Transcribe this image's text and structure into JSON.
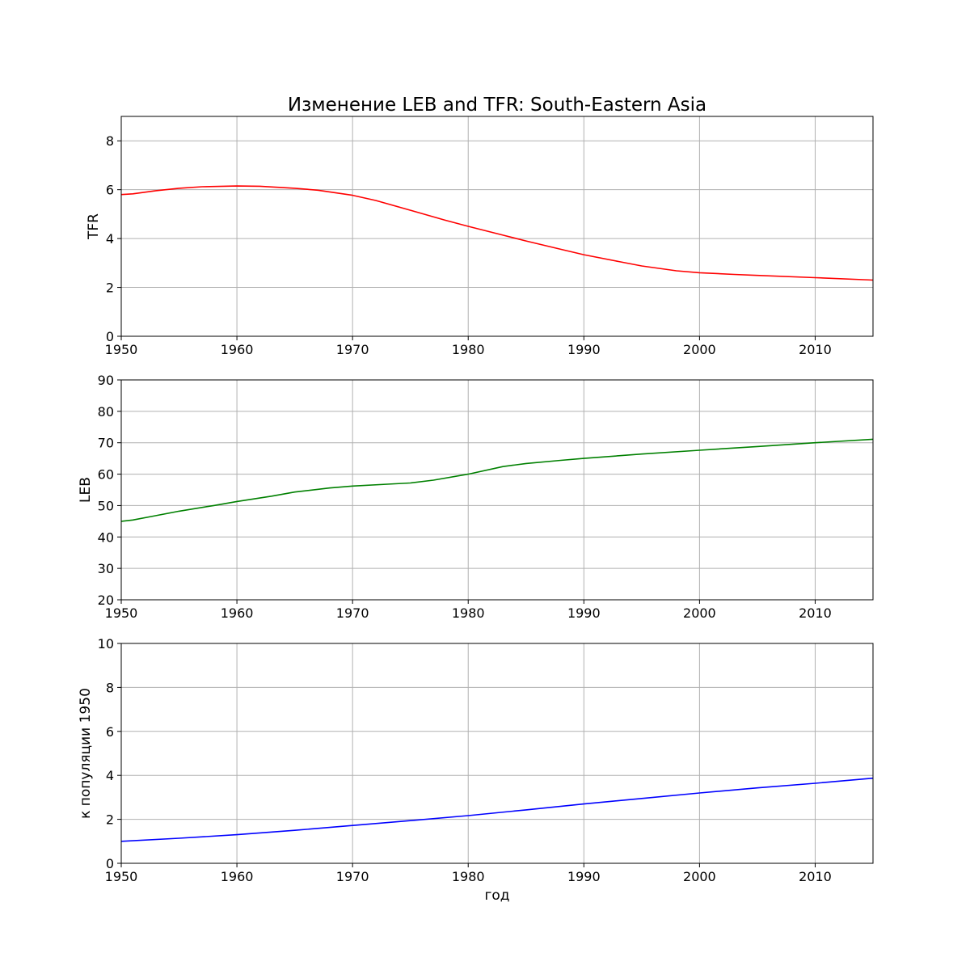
{
  "figure": {
    "title": "Изменение LEB and TFR: South-Eastern Asia"
  },
  "chart_data": [
    {
      "type": "line",
      "title": "Изменение LEB and TFR: South-Eastern Asia",
      "xlabel": "",
      "ylabel": "TFR",
      "xlim": [
        1950,
        2015
      ],
      "ylim": [
        0,
        9
      ],
      "xticks": [
        1950,
        1960,
        1970,
        1980,
        1990,
        2000,
        2010
      ],
      "yticks": [
        0,
        2,
        4,
        6,
        8
      ],
      "grid": true,
      "series": [
        {
          "color": "#ff0000",
          "x": [
            1950,
            1951,
            1953,
            1955,
            1957,
            1960,
            1962,
            1965,
            1967,
            1970,
            1972,
            1975,
            1978,
            1980,
            1983,
            1985,
            1988,
            1990,
            1993,
            1995,
            1998,
            2000,
            2003,
            2005,
            2010,
            2015
          ],
          "y": [
            5.8,
            5.83,
            5.96,
            6.06,
            6.12,
            6.15,
            6.14,
            6.06,
            5.98,
            5.77,
            5.56,
            5.16,
            4.75,
            4.5,
            4.14,
            3.9,
            3.56,
            3.34,
            3.06,
            2.88,
            2.68,
            2.6,
            2.53,
            2.49,
            2.4,
            2.3
          ]
        }
      ]
    },
    {
      "type": "line",
      "xlabel": "",
      "ylabel": "LEB",
      "xlim": [
        1950,
        2015
      ],
      "ylim": [
        20,
        90
      ],
      "xticks": [
        1950,
        1960,
        1970,
        1980,
        1990,
        2000,
        2010
      ],
      "yticks": [
        20,
        30,
        40,
        50,
        60,
        70,
        80,
        90
      ],
      "grid": true,
      "series": [
        {
          "color": "#008000",
          "x": [
            1950,
            1951,
            1953,
            1955,
            1958,
            1960,
            1963,
            1965,
            1968,
            1970,
            1973,
            1975,
            1977,
            1980,
            1983,
            1985,
            1988,
            1990,
            1995,
            2000,
            2005,
            2010,
            2015
          ],
          "y": [
            45.0,
            45.4,
            46.8,
            48.2,
            50.0,
            51.3,
            53.0,
            54.3,
            55.6,
            56.2,
            56.8,
            57.2,
            58.1,
            60.0,
            62.4,
            63.4,
            64.4,
            65.0,
            66.4,
            67.6,
            68.8,
            70.0,
            71.1
          ]
        }
      ]
    },
    {
      "type": "line",
      "xlabel": "год",
      "ylabel": "к популяции 1950",
      "xlim": [
        1950,
        2015
      ],
      "ylim": [
        0,
        10
      ],
      "xticks": [
        1950,
        1960,
        1970,
        1980,
        1990,
        2000,
        2010
      ],
      "yticks": [
        0,
        2,
        4,
        6,
        8,
        10
      ],
      "grid": true,
      "series": [
        {
          "color": "#0000ff",
          "x": [
            1950,
            1955,
            1960,
            1965,
            1970,
            1975,
            1980,
            1985,
            1990,
            1995,
            2000,
            2005,
            2010,
            2015
          ],
          "y": [
            1.0,
            1.14,
            1.3,
            1.5,
            1.72,
            1.94,
            2.17,
            2.43,
            2.7,
            2.95,
            3.2,
            3.43,
            3.64,
            3.87
          ]
        }
      ]
    }
  ]
}
